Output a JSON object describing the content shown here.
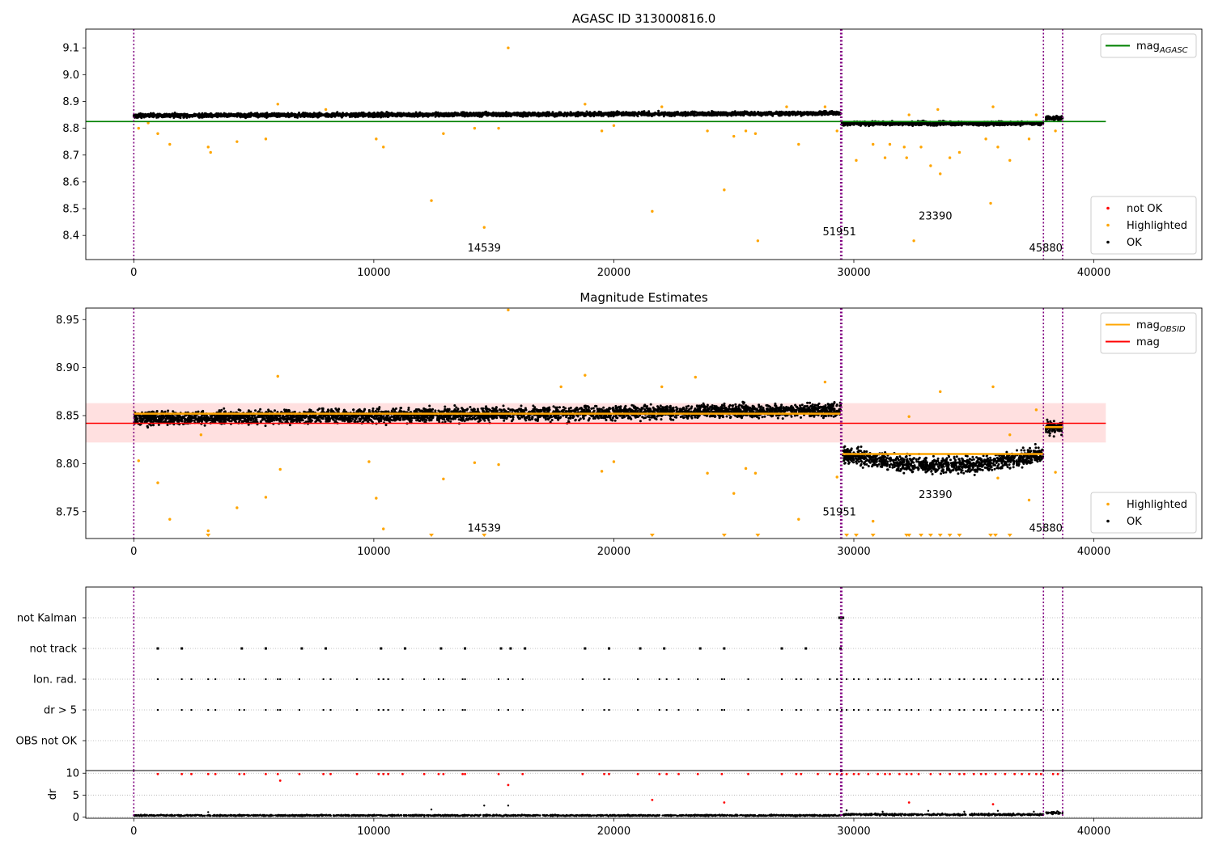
{
  "figure": {
    "title": "AGASC ID 313000816.0"
  },
  "colors": {
    "ok": "#000000",
    "highlighted": "#ffa500",
    "not_ok": "#ff0000",
    "mag_agasc": "#008000",
    "mag": "#ff0000",
    "mag_obsid": "#ffa500",
    "boundary": "#800080",
    "band": "#ffcccc"
  },
  "chart_data": [
    {
      "id": "top",
      "type": "scatter",
      "title": "AGASC ID 313000816.0",
      "xlim": [
        -2000,
        44500
      ],
      "ylim": [
        8.31,
        9.17
      ],
      "xticks": [
        0,
        10000,
        20000,
        30000,
        40000
      ],
      "xtick_labels": [
        "0",
        "10000",
        "20000",
        "30000",
        "40000"
      ],
      "yticks": [
        8.4,
        8.5,
        8.6,
        8.7,
        8.8,
        8.9,
        9.0,
        9.1
      ],
      "ytick_labels": [
        "8.4",
        "8.5",
        "8.6",
        "8.7",
        "8.8",
        "8.9",
        "9.0",
        "9.1"
      ],
      "boundaries": [
        0,
        29450,
        29500,
        37900,
        38700
      ],
      "obsid_labels": [
        {
          "text": "14539",
          "x": 14600,
          "y": 8.34
        },
        {
          "text": "51951",
          "x": 29400,
          "y": 8.4
        },
        {
          "text": "23390",
          "x": 33400,
          "y": 8.46
        },
        {
          "text": "45880",
          "x": 38000,
          "y": 8.34
        }
      ],
      "hlines": [
        {
          "name": "mag_AGASC",
          "y": 8.825,
          "xmax": 40500,
          "color": "#008000"
        }
      ],
      "ok_segments": [
        {
          "x0": 0,
          "x1": 29450,
          "y0": 8.847,
          "y1": 8.856,
          "spread": 0.012
        },
        {
          "x0": 29500,
          "x1": 37900,
          "y0": 8.818,
          "y1": 8.818,
          "spread": 0.012
        },
        {
          "x0": 38000,
          "x1": 38700,
          "y0": 8.838,
          "y1": 8.838,
          "spread": 0.012
        }
      ],
      "highlighted": [
        [
          200,
          8.8
        ],
        [
          600,
          8.82
        ],
        [
          1000,
          8.78
        ],
        [
          1500,
          8.74
        ],
        [
          3100,
          8.73
        ],
        [
          3200,
          8.71
        ],
        [
          4300,
          8.75
        ],
        [
          5500,
          8.76
        ],
        [
          6000,
          8.89
        ],
        [
          10100,
          8.76
        ],
        [
          10400,
          8.73
        ],
        [
          12400,
          8.53
        ],
        [
          12900,
          8.78
        ],
        [
          14200,
          8.8
        ],
        [
          14600,
          8.43
        ],
        [
          15200,
          8.8
        ],
        [
          15600,
          9.1
        ],
        [
          19500,
          8.79
        ],
        [
          20000,
          8.81
        ],
        [
          21600,
          8.49
        ],
        [
          23900,
          8.79
        ],
        [
          24600,
          8.57
        ],
        [
          25000,
          8.77
        ],
        [
          25500,
          8.79
        ],
        [
          25900,
          8.78
        ],
        [
          26000,
          8.38
        ],
        [
          27700,
          8.74
        ],
        [
          29300,
          8.79
        ],
        [
          30100,
          8.68
        ],
        [
          30800,
          8.74
        ],
        [
          31300,
          8.69
        ],
        [
          31500,
          8.74
        ],
        [
          32100,
          8.73
        ],
        [
          32200,
          8.69
        ],
        [
          32300,
          8.85
        ],
        [
          32500,
          8.38
        ],
        [
          32800,
          8.73
        ],
        [
          33200,
          8.66
        ],
        [
          33500,
          8.87
        ],
        [
          33600,
          8.63
        ],
        [
          34000,
          8.69
        ],
        [
          34400,
          8.71
        ],
        [
          35500,
          8.76
        ],
        [
          35700,
          8.52
        ],
        [
          35800,
          8.88
        ],
        [
          36000,
          8.73
        ],
        [
          36500,
          8.68
        ],
        [
          37300,
          8.76
        ],
        [
          37600,
          8.85
        ],
        [
          38400,
          8.79
        ],
        [
          8000,
          8.87
        ],
        [
          18800,
          8.89
        ],
        [
          22000,
          8.88
        ],
        [
          27200,
          8.88
        ],
        [
          28800,
          8.88
        ]
      ],
      "legends": [
        {
          "position": "upper right",
          "entries": [
            {
              "label": "mag_AGASC",
              "kind": "line",
              "color": "#008000"
            }
          ]
        },
        {
          "position": "lower right",
          "entries": [
            {
              "label": "not OK",
              "kind": "dot",
              "color": "#ff0000"
            },
            {
              "label": "Highlighted",
              "kind": "dot",
              "color": "#ffa500"
            },
            {
              "label": "OK",
              "kind": "dot",
              "color": "#000000"
            }
          ]
        }
      ]
    },
    {
      "id": "middle",
      "type": "scatter",
      "title": "Magnitude Estimates",
      "xlim": [
        -2000,
        44500
      ],
      "ylim": [
        8.722,
        8.962
      ],
      "xticks": [
        0,
        10000,
        20000,
        30000,
        40000
      ],
      "xtick_labels": [
        "0",
        "10000",
        "20000",
        "30000",
        "40000"
      ],
      "yticks": [
        8.75,
        8.8,
        8.85,
        8.9,
        8.95
      ],
      "ytick_labels": [
        "8.75",
        "8.80",
        "8.85",
        "8.90",
        "8.95"
      ],
      "boundaries": [
        0,
        29450,
        29500,
        37900,
        38700
      ],
      "obsid_labels": [
        {
          "text": "14539",
          "x": 14600,
          "y": 8.729
        },
        {
          "text": "51951",
          "x": 29400,
          "y": 8.746
        },
        {
          "text": "23390",
          "x": 33400,
          "y": 8.764
        },
        {
          "text": "45880",
          "x": 38000,
          "y": 8.729
        }
      ],
      "band": {
        "y0": 8.822,
        "y1": 8.863,
        "xmax": 40500
      },
      "hlines": [
        {
          "name": "mag",
          "y": 8.842,
          "xmax": 40500,
          "color": "#ff0000"
        }
      ],
      "obsid_mags": [
        {
          "x0": 0,
          "x1": 29450,
          "y": 8.852
        },
        {
          "x0": 29500,
          "x1": 37900,
          "y": 8.81
        },
        {
          "x0": 37950,
          "x1": 38700,
          "y": 8.838
        }
      ],
      "ok_segments": [
        {
          "x0": 0,
          "x1": 29450,
          "y0": 8.847,
          "y1": 8.856,
          "spread": 0.012
        },
        {
          "x0": 29500,
          "x1": 37900,
          "y0": 8.81,
          "y1": 8.81,
          "spread": 0.014
        },
        {
          "x0": 38000,
          "x1": 38700,
          "y0": 8.838,
          "y1": 8.838,
          "spread": 0.012
        }
      ],
      "highlighted": [
        [
          200,
          8.803
        ],
        [
          1000,
          8.78
        ],
        [
          1500,
          8.742
        ],
        [
          2800,
          8.83
        ],
        [
          3100,
          8.73
        ],
        [
          4300,
          8.754
        ],
        [
          5500,
          8.765
        ],
        [
          6000,
          8.891
        ],
        [
          6100,
          8.794
        ],
        [
          9800,
          8.802
        ],
        [
          10100,
          8.764
        ],
        [
          10400,
          8.732
        ],
        [
          12900,
          8.784
        ],
        [
          14200,
          8.801
        ],
        [
          15200,
          8.799
        ],
        [
          15600,
          8.96
        ],
        [
          17800,
          8.88
        ],
        [
          18800,
          8.892
        ],
        [
          19500,
          8.792
        ],
        [
          20000,
          8.802
        ],
        [
          22000,
          8.88
        ],
        [
          23400,
          8.89
        ],
        [
          23900,
          8.79
        ],
        [
          25000,
          8.769
        ],
        [
          25500,
          8.795
        ],
        [
          25900,
          8.79
        ],
        [
          27700,
          8.742
        ],
        [
          28800,
          8.885
        ],
        [
          29300,
          8.786
        ],
        [
          30800,
          8.74
        ],
        [
          32300,
          8.849
        ],
        [
          33600,
          8.875
        ],
        [
          35800,
          8.88
        ],
        [
          36000,
          8.785
        ],
        [
          36500,
          8.83
        ],
        [
          37300,
          8.762
        ],
        [
          37600,
          8.856
        ],
        [
          38400,
          8.791
        ]
      ],
      "below_markers": [
        3100,
        12400,
        14600,
        21600,
        24600,
        26000,
        29700,
        30100,
        30800,
        32200,
        32300,
        32800,
        33200,
        33600,
        34000,
        34400,
        35700,
        35900,
        36500
      ],
      "legends": [
        {
          "position": "upper right",
          "entries": [
            {
              "label": "mag_OBSID",
              "kind": "line",
              "color": "#ffa500"
            },
            {
              "label": "mag",
              "kind": "line",
              "color": "#ff0000"
            }
          ]
        },
        {
          "position": "lower right",
          "entries": [
            {
              "label": "Highlighted",
              "kind": "dot",
              "color": "#ffa500"
            },
            {
              "label": "OK",
              "kind": "dot",
              "color": "#000000"
            }
          ]
        }
      ]
    },
    {
      "id": "flags",
      "type": "scatter",
      "xlim": [
        -2000,
        44500
      ],
      "categories": [
        "not Kalman",
        "not track",
        "Ion. rad.",
        "dr > 5",
        "OBS not OK"
      ],
      "boundaries": [
        0,
        29450,
        29500,
        37900,
        38700
      ],
      "flags": {
        "not Kalman": [
          29400,
          29450,
          29500,
          29550
        ],
        "not track": [
          1000,
          2000,
          4500,
          5500,
          7000,
          8000,
          10300,
          11300,
          12800,
          13800,
          15300,
          15700,
          16300,
          18800,
          19800,
          21100,
          22100,
          23600,
          24600,
          27000,
          28000,
          29450
        ],
        "Ion. rad.": [
          1000,
          2000,
          2400,
          3100,
          3400,
          4400,
          4600,
          5500,
          6000,
          6100,
          6900,
          7900,
          8200,
          9300,
          10200,
          10400,
          10600,
          11200,
          12100,
          12700,
          12900,
          13700,
          13800,
          15200,
          15600,
          16200,
          18700,
          19600,
          19800,
          21000,
          21900,
          22200,
          22700,
          23500,
          24500,
          24600,
          25600,
          27000,
          27600,
          27800,
          28500,
          29000,
          29300,
          29500,
          29700,
          30000,
          30200,
          30600,
          31000,
          31300,
          31500,
          31900,
          32200,
          32400,
          32700,
          33200,
          33600,
          34000,
          34400,
          34600,
          35000,
          35300,
          35500,
          35900,
          36300,
          36700,
          37000,
          37300,
          37600,
          37800,
          38300,
          38500
        ],
        "dr > 5": [
          1000,
          2000,
          2400,
          3100,
          3400,
          4400,
          4600,
          5500,
          6000,
          6100,
          6900,
          7900,
          8200,
          9300,
          10200,
          10400,
          10600,
          11200,
          12100,
          12700,
          12900,
          13700,
          13800,
          15200,
          15600,
          16200,
          18700,
          19600,
          19800,
          21000,
          21900,
          22200,
          22700,
          23500,
          24500,
          24600,
          25600,
          27000,
          27600,
          27800,
          28500,
          29000,
          29300,
          29500,
          29700,
          30000,
          30200,
          30600,
          31000,
          31300,
          31500,
          31900,
          32200,
          32400,
          32700,
          33200,
          33600,
          34000,
          34400,
          34600,
          35000,
          35300,
          35500,
          35900,
          36300,
          36700,
          37000,
          37300,
          37600,
          37800,
          38300,
          38500
        ],
        "OBS not OK": []
      }
    },
    {
      "id": "dr",
      "type": "scatter",
      "ylabel": "dr",
      "xlim": [
        -2000,
        44500
      ],
      "ylim": [
        -0.3,
        10.6
      ],
      "xticks": [
        0,
        10000,
        20000,
        30000,
        40000
      ],
      "xtick_labels": [
        "0",
        "10000",
        "20000",
        "30000",
        "40000"
      ],
      "yticks": [
        0,
        5,
        10
      ],
      "ytick_labels": [
        "0",
        "5",
        "10"
      ],
      "boundaries": [
        0,
        29450,
        29500,
        37900,
        38700
      ],
      "not_ok": [
        [
          1000,
          9.8
        ],
        [
          2000,
          9.8
        ],
        [
          2400,
          9.8
        ],
        [
          3100,
          9.8
        ],
        [
          3400,
          9.8
        ],
        [
          4400,
          9.8
        ],
        [
          4600,
          9.8
        ],
        [
          5500,
          9.8
        ],
        [
          6000,
          9.8
        ],
        [
          6100,
          8.3
        ],
        [
          6900,
          9.8
        ],
        [
          7900,
          9.8
        ],
        [
          8200,
          9.8
        ],
        [
          9300,
          9.8
        ],
        [
          10200,
          9.8
        ],
        [
          10400,
          9.8
        ],
        [
          10600,
          9.8
        ],
        [
          11200,
          9.8
        ],
        [
          12100,
          9.8
        ],
        [
          12700,
          9.8
        ],
        [
          12900,
          9.8
        ],
        [
          13700,
          9.8
        ],
        [
          13800,
          9.8
        ],
        [
          15200,
          9.8
        ],
        [
          15600,
          7.3
        ],
        [
          16200,
          9.8
        ],
        [
          18700,
          9.8
        ],
        [
          19600,
          9.8
        ],
        [
          19800,
          9.8
        ],
        [
          21000,
          9.8
        ],
        [
          21600,
          3.9
        ],
        [
          21900,
          9.8
        ],
        [
          22200,
          9.8
        ],
        [
          22700,
          9.8
        ],
        [
          23500,
          9.8
        ],
        [
          24500,
          9.8
        ],
        [
          24600,
          3.3
        ],
        [
          25600,
          9.8
        ],
        [
          27000,
          9.8
        ],
        [
          27600,
          9.8
        ],
        [
          27800,
          9.8
        ],
        [
          28500,
          9.8
        ],
        [
          29000,
          9.8
        ],
        [
          29300,
          9.8
        ],
        [
          29500,
          9.8
        ],
        [
          29700,
          9.8
        ],
        [
          30000,
          9.8
        ],
        [
          30200,
          9.8
        ],
        [
          30600,
          9.8
        ],
        [
          31000,
          9.8
        ],
        [
          31300,
          9.8
        ],
        [
          31500,
          9.8
        ],
        [
          31900,
          9.8
        ],
        [
          32200,
          9.8
        ],
        [
          32300,
          3.3
        ],
        [
          32400,
          9.8
        ],
        [
          32700,
          9.8
        ],
        [
          33200,
          9.8
        ],
        [
          33600,
          9.8
        ],
        [
          34000,
          9.8
        ],
        [
          34400,
          9.8
        ],
        [
          34600,
          9.8
        ],
        [
          35000,
          9.8
        ],
        [
          35300,
          9.8
        ],
        [
          35500,
          9.8
        ],
        [
          35800,
          2.9
        ],
        [
          35900,
          9.8
        ],
        [
          36300,
          9.8
        ],
        [
          36700,
          9.8
        ],
        [
          37000,
          9.8
        ],
        [
          37300,
          9.8
        ],
        [
          37600,
          9.8
        ],
        [
          37800,
          9.8
        ],
        [
          38300,
          9.8
        ],
        [
          38500,
          9.8
        ]
      ],
      "ok_extra": [
        [
          3100,
          1.1
        ],
        [
          12400,
          1.7
        ],
        [
          14600,
          2.6
        ],
        [
          15600,
          2.6
        ],
        [
          29700,
          1.5
        ],
        [
          31200,
          1.2
        ],
        [
          33100,
          1.4
        ],
        [
          34600,
          1.2
        ],
        [
          36000,
          1.4
        ],
        [
          37500,
          1.2
        ]
      ]
    }
  ]
}
